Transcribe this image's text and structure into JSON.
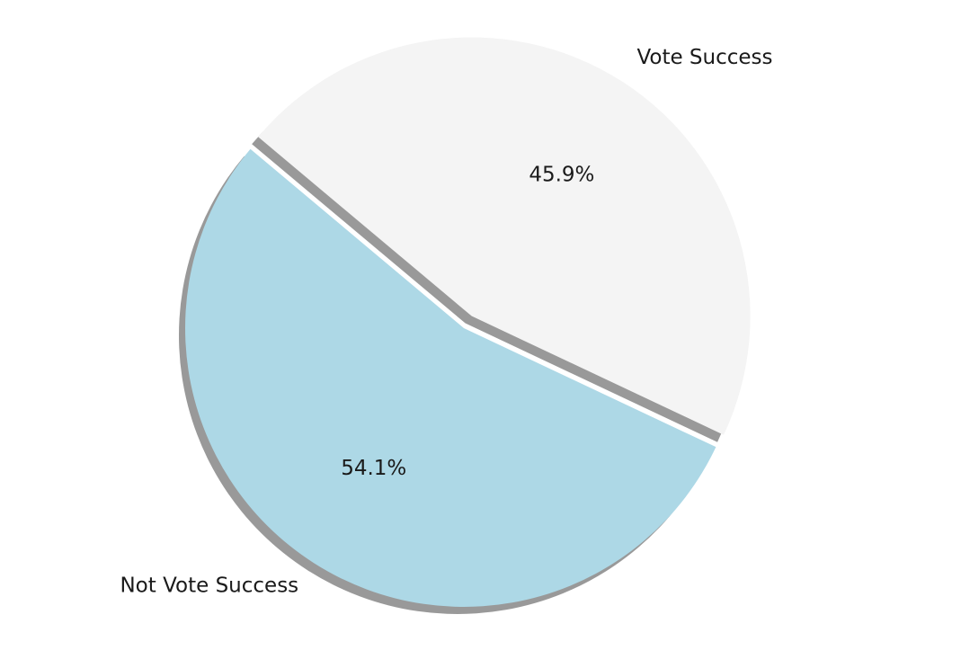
{
  "chart_data": {
    "type": "pie",
    "title": "",
    "slices": [
      {
        "label": "Vote Success",
        "value": 45.9,
        "pct_label": "45.9%",
        "color": "#f4f4f4",
        "exploded": true
      },
      {
        "label": "Not Vote Success",
        "value": 54.1,
        "pct_label": "54.1%",
        "color": "#add8e6",
        "exploded": false
      }
    ],
    "shadow": true,
    "shadow_color": "#999999",
    "legend": "none"
  }
}
